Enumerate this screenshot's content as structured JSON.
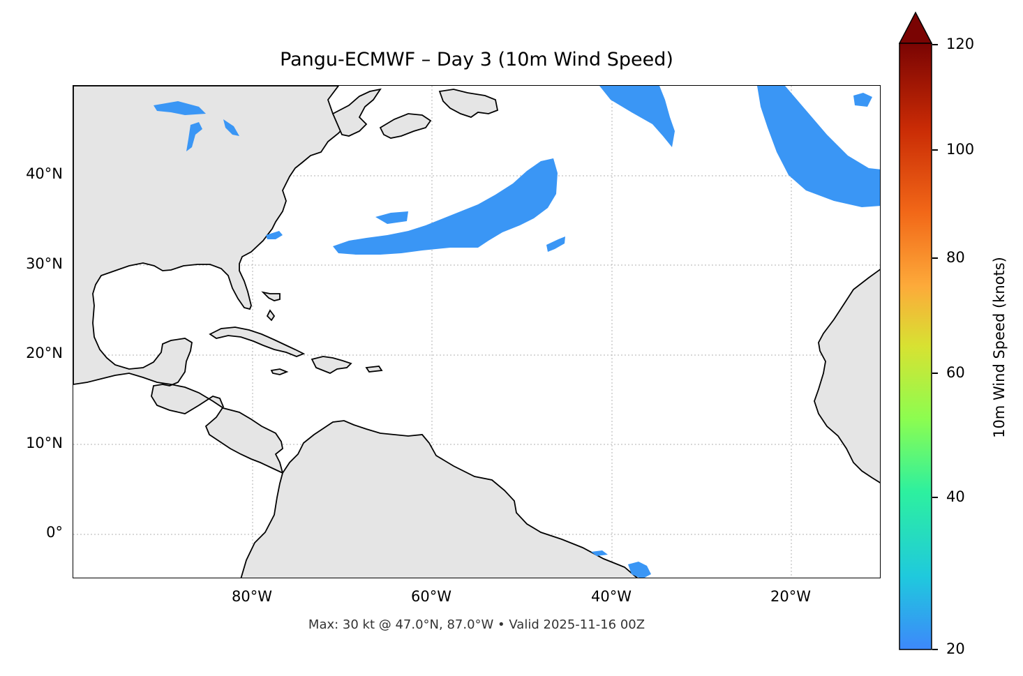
{
  "title": "Pangu-ECMWF – Day 3 (10m Wind Speed)",
  "footer": "Max: 30 kt @ 47.0°N, 87.0°W • Valid 2025-11-16 00Z",
  "map": {
    "projection": "PlateCarree",
    "lon_range": [
      -100,
      -10
    ],
    "lat_range": [
      -5,
      50
    ],
    "land_color": "#e5e5e5",
    "ocean_color": "#ffffff",
    "coastline_color": "#000000",
    "border_color": "#666666",
    "gridlines": true,
    "lat_labels": [
      "40°N",
      "30°N",
      "20°N",
      "10°N",
      "0°"
    ],
    "lon_labels": [
      "80°W",
      "60°W",
      "40°W",
      "20°W"
    ]
  },
  "wind_field_color": "#3a96f5",
  "colorbar": {
    "label": "10m Wind Speed (knots)",
    "range": [
      20,
      120
    ],
    "extend": "max",
    "ticks": [
      "120",
      "100",
      "80",
      "60",
      "40",
      "20"
    ],
    "colormap": [
      "#3d88fb",
      "#1fc9dd",
      "#2df09f",
      "#8cfd50",
      "#d7e232",
      "#fdaa3a",
      "#f26818",
      "#c92b05",
      "#7a0403"
    ]
  }
}
